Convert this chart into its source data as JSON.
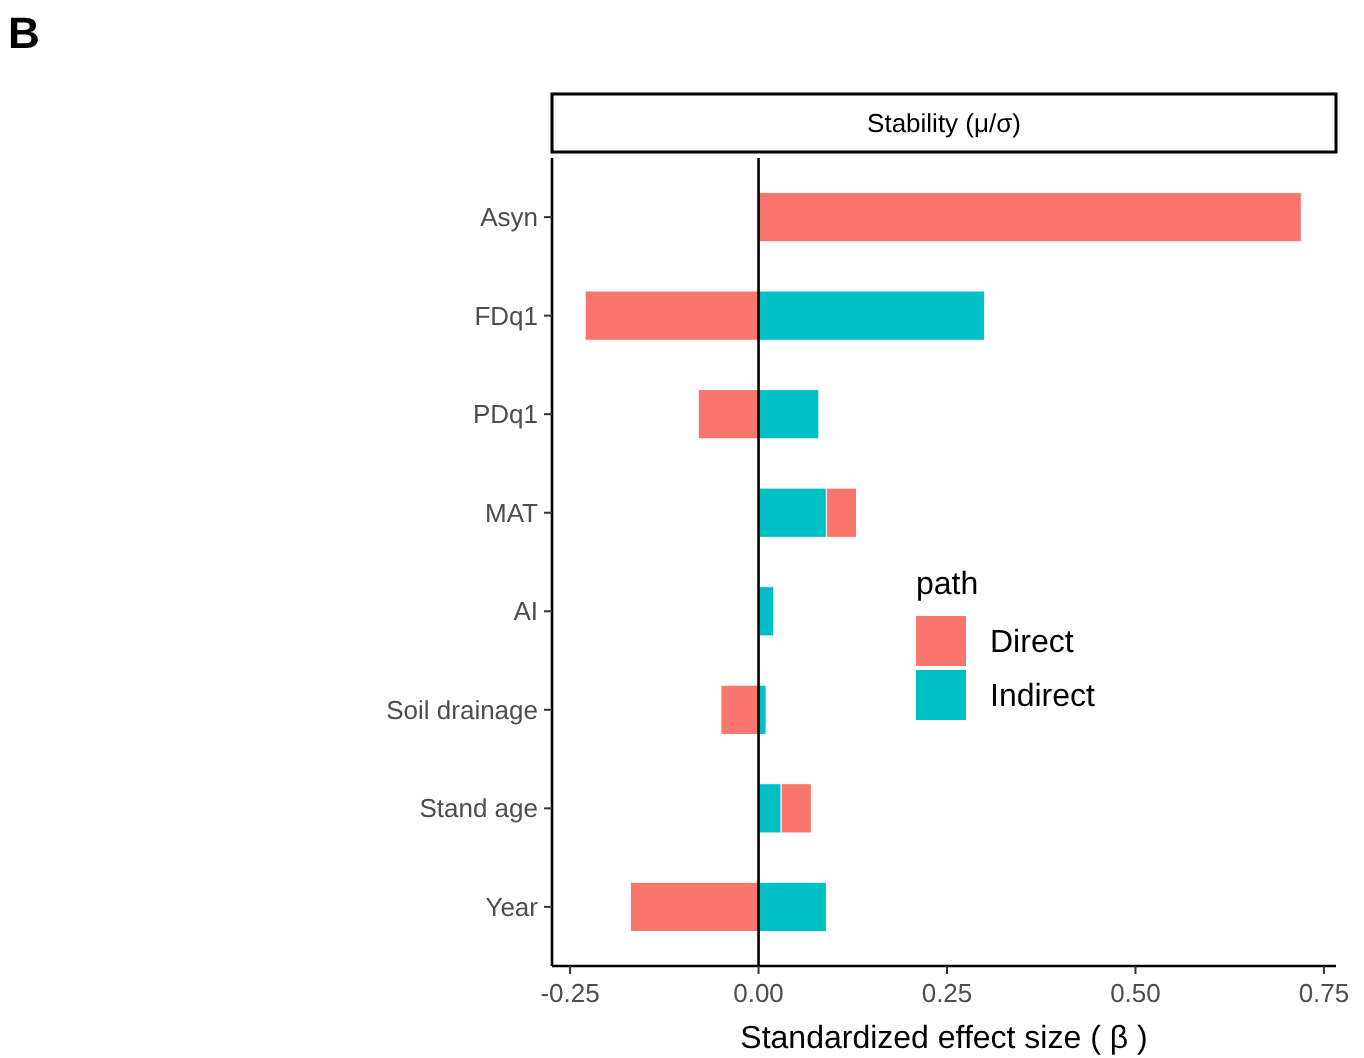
{
  "chart_data": {
    "type": "bar",
    "orientation": "horizontal",
    "stacked": true,
    "title": "Stability (μ/σ)",
    "xlabel": "Standardized effect size ( β )",
    "legend_title": "path",
    "legend": "right",
    "annotations": [
      "B"
    ],
    "categories": [
      "Asyn",
      "FDq1",
      "PDq1",
      "MAT",
      "AI",
      "Soil drainage",
      "Stand age",
      "Year"
    ],
    "series": [
      {
        "name": "Indirect",
        "color": "#00bfc4",
        "values": [
          0,
          0.3,
          0.08,
          0.09,
          0.02,
          0.01,
          0.03,
          0.09
        ]
      },
      {
        "name": "Direct",
        "color": "#f8766d",
        "values": [
          0.72,
          -0.23,
          -0.08,
          0.04,
          0,
          -0.05,
          0.04,
          -0.17
        ]
      }
    ],
    "xlim": [
      -0.274,
      0.766
    ],
    "xticks": [
      {
        "value": -0.25,
        "label": "-0.25"
      },
      {
        "value": 0,
        "label": "0.00"
      },
      {
        "value": 0.25,
        "label": "0.25"
      },
      {
        "value": 0.5,
        "label": "0.50"
      },
      {
        "value": 0.75,
        "label": "0.75"
      }
    ],
    "ref_lines": [
      {
        "axis": "x",
        "value": 0,
        "color": "#000000"
      }
    ]
  }
}
